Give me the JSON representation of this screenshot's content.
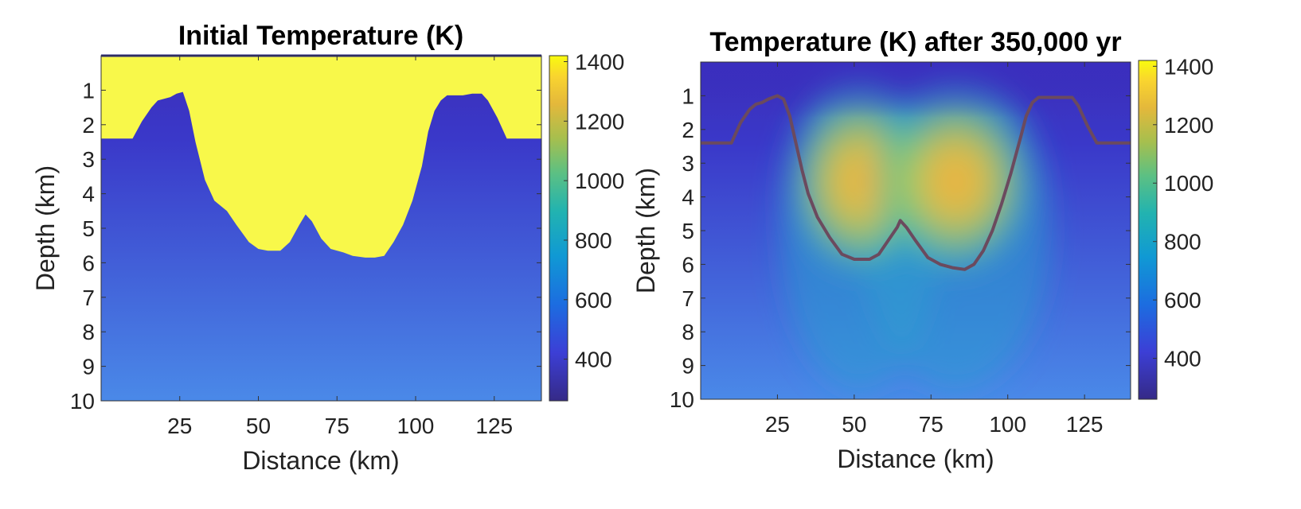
{
  "chart_data": [
    {
      "type": "heatmap",
      "title": "Initial Temperature (K)",
      "xlabel": "Distance (km)",
      "ylabel": "Depth (km)",
      "xlim": [
        0,
        140
      ],
      "ylim": [
        10,
        0
      ],
      "xticks": [
        25,
        50,
        75,
        100,
        125
      ],
      "yticks": [
        1,
        2,
        3,
        4,
        5,
        6,
        7,
        8,
        9,
        10
      ],
      "colorbar": {
        "range": [
          260,
          1420
        ],
        "ticks": [
          400,
          600,
          800,
          1000,
          1200,
          1400
        ]
      },
      "background_profile": {
        "depth": [
          0,
          2.4,
          10
        ],
        "temperature": [
          300,
          340,
          560
        ]
      },
      "intrusion_temperature": 1400,
      "intrusion_top_depth": 0,
      "intrusion_boundary": {
        "distance": [
          0,
          10,
          13,
          16,
          18,
          20,
          22,
          24,
          26,
          28,
          30,
          33,
          36,
          40,
          43,
          47,
          50,
          53,
          57,
          60,
          63,
          65,
          67,
          70,
          73,
          77,
          80,
          84,
          87,
          90,
          93,
          96,
          99,
          102,
          104,
          106,
          108,
          110,
          112,
          115,
          118,
          121,
          123,
          126,
          129,
          140
        ],
        "depth": [
          2.4,
          2.4,
          1.9,
          1.5,
          1.3,
          1.25,
          1.2,
          1.1,
          1.05,
          1.6,
          2.5,
          3.6,
          4.2,
          4.5,
          4.9,
          5.4,
          5.6,
          5.65,
          5.65,
          5.4,
          4.9,
          4.6,
          4.8,
          5.3,
          5.6,
          5.7,
          5.8,
          5.85,
          5.85,
          5.8,
          5.4,
          4.9,
          4.2,
          3.2,
          2.2,
          1.6,
          1.3,
          1.15,
          1.15,
          1.15,
          1.1,
          1.1,
          1.3,
          1.8,
          2.4,
          2.4
        ]
      }
    },
    {
      "type": "heatmap",
      "title": "Temperature (K) after 350,000 yr",
      "xlabel": "Distance (km)",
      "ylabel": "Depth (km)",
      "xlim": [
        0,
        140
      ],
      "ylim": [
        10,
        0
      ],
      "xticks": [
        25,
        50,
        75,
        100,
        125
      ],
      "yticks": [
        1,
        2,
        3,
        4,
        5,
        6,
        7,
        8,
        9,
        10
      ],
      "colorbar": {
        "range": [
          260,
          1420
        ],
        "ticks": [
          400,
          600,
          800,
          1000,
          1200,
          1400
        ]
      },
      "hot_zones": [
        {
          "center_distance": 52,
          "center_depth": 3.5,
          "peak_temperature": 1270
        },
        {
          "center_distance": 84,
          "center_depth": 3.5,
          "peak_temperature": 1280
        }
      ],
      "contour_line": "initial intrusion boundary",
      "contour_color": "#6b4a5e",
      "intrusion_boundary": {
        "distance": [
          0,
          10,
          13,
          16,
          18,
          20,
          22,
          25,
          27,
          29,
          31,
          33,
          35,
          38,
          42,
          46,
          50,
          55,
          58,
          61,
          64,
          65,
          67,
          70,
          74,
          78,
          82,
          86,
          89,
          92,
          95,
          98,
          101,
          104,
          106,
          108,
          110,
          114,
          118,
          121,
          123,
          126,
          129,
          140
        ],
        "depth": [
          2.4,
          2.4,
          1.8,
          1.4,
          1.25,
          1.2,
          1.1,
          1.0,
          1.1,
          1.6,
          2.4,
          3.2,
          3.9,
          4.6,
          5.2,
          5.7,
          5.85,
          5.85,
          5.7,
          5.3,
          4.9,
          4.7,
          4.9,
          5.3,
          5.8,
          6.0,
          6.1,
          6.15,
          6.0,
          5.6,
          5.0,
          4.2,
          3.3,
          2.3,
          1.6,
          1.2,
          1.05,
          1.05,
          1.05,
          1.05,
          1.3,
          1.9,
          2.4,
          2.4
        ]
      }
    }
  ]
}
